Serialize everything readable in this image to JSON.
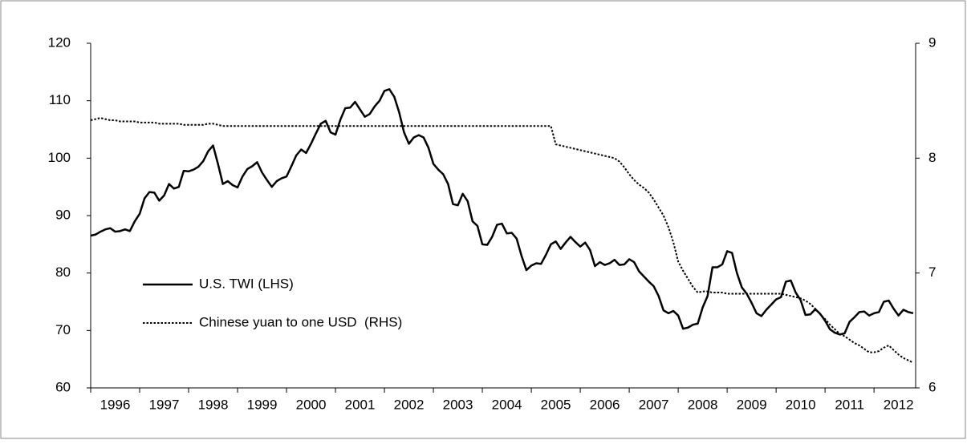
{
  "chart_data": {
    "type": "line",
    "x": [
      1996.0,
      1996.1,
      1996.2,
      1996.3,
      1996.4,
      1996.5,
      1996.6,
      1996.7,
      1996.8,
      1996.9,
      1997.0,
      1997.1,
      1997.2,
      1997.3,
      1997.4,
      1997.5,
      1997.6,
      1997.7,
      1997.8,
      1997.9,
      1998.0,
      1998.1,
      1998.2,
      1998.3,
      1998.4,
      1998.5,
      1998.6,
      1998.7,
      1998.8,
      1998.9,
      1999.0,
      1999.1,
      1999.2,
      1999.3,
      1999.4,
      1999.5,
      1999.6,
      1999.7,
      1999.8,
      1999.9,
      2000.0,
      2000.1,
      2000.2,
      2000.3,
      2000.4,
      2000.5,
      2000.6,
      2000.7,
      2000.8,
      2000.9,
      2001.0,
      2001.1,
      2001.2,
      2001.3,
      2001.4,
      2001.5,
      2001.6,
      2001.7,
      2001.8,
      2001.9,
      2002.0,
      2002.1,
      2002.2,
      2002.3,
      2002.4,
      2002.5,
      2002.6,
      2002.7,
      2002.8,
      2002.9,
      2003.0,
      2003.1,
      2003.2,
      2003.3,
      2003.4,
      2003.5,
      2003.6,
      2003.7,
      2003.8,
      2003.9,
      2004.0,
      2004.1,
      2004.2,
      2004.3,
      2004.4,
      2004.5,
      2004.6,
      2004.7,
      2004.8,
      2004.9,
      2005.0,
      2005.1,
      2005.2,
      2005.3,
      2005.4,
      2005.5,
      2005.6,
      2005.7,
      2005.8,
      2005.9,
      2006.0,
      2006.1,
      2006.2,
      2006.3,
      2006.4,
      2006.5,
      2006.6,
      2006.7,
      2006.8,
      2006.9,
      2007.0,
      2007.1,
      2007.2,
      2007.3,
      2007.4,
      2007.5,
      2007.6,
      2007.7,
      2007.8,
      2007.9,
      2008.0,
      2008.1,
      2008.2,
      2008.3,
      2008.4,
      2008.5,
      2008.6,
      2008.7,
      2008.8,
      2008.9,
      2009.0,
      2009.1,
      2009.2,
      2009.3,
      2009.4,
      2009.5,
      2009.6,
      2009.7,
      2009.8,
      2009.9,
      2010.0,
      2010.1,
      2010.2,
      2010.3,
      2010.4,
      2010.5,
      2010.6,
      2010.7,
      2010.8,
      2010.9,
      2011.0,
      2011.1,
      2011.2,
      2011.3,
      2011.4,
      2011.5,
      2011.6,
      2011.7,
      2011.8,
      2011.9,
      2012.0,
      2012.1,
      2012.2,
      2012.3,
      2012.4,
      2012.5,
      2012.6,
      2012.7,
      2012.8
    ],
    "series": [
      {
        "name": "U.S. TWI (LHS)",
        "color": "#000000",
        "line_style": "solid",
        "axis": "y",
        "values": [
          86.5,
          86.7,
          87.2,
          87.6,
          87.8,
          87.2,
          87.3,
          87.6,
          87.3,
          89,
          90.3,
          93,
          94.1,
          94,
          92.6,
          93.5,
          95.5,
          94.7,
          95,
          97.8,
          97.7,
          98,
          98.5,
          99.5,
          101.2,
          102.2,
          99,
          95.5,
          96,
          95.3,
          94.9,
          96.8,
          98.1,
          98.6,
          99.3,
          97.5,
          96.2,
          95,
          96,
          96.5,
          96.8,
          98.6,
          100.5,
          101.5,
          100.9,
          102.5,
          104.3,
          106,
          106.5,
          104.5,
          104.1,
          106.7,
          108.7,
          108.8,
          109.8,
          108.5,
          107.2,
          107.7,
          109,
          110,
          111.7,
          112,
          110.7,
          108,
          104.5,
          102.5,
          103.6,
          104,
          103.6,
          101.8,
          99,
          98,
          97.2,
          95.5,
          92,
          91.8,
          93.8,
          92.5,
          89,
          88.2,
          85,
          84.9,
          86.3,
          88.4,
          88.6,
          86.9,
          87,
          86,
          83,
          80.5,
          81.3,
          81.7,
          81.6,
          83.2,
          85,
          85.5,
          84.2,
          85.3,
          86.3,
          85.4,
          84.6,
          85.3,
          84,
          81.2,
          81.9,
          81.4,
          81.7,
          82.3,
          81.4,
          81.5,
          82.4,
          81.9,
          80.3,
          79.4,
          78.5,
          77.7,
          76,
          73.5,
          73,
          73.4,
          72.6,
          70.3,
          70.5,
          71,
          71.2,
          74,
          76,
          81,
          81,
          81.5,
          83.8,
          83.5,
          80,
          77.5,
          76.4,
          74.8,
          73,
          72.5,
          73.6,
          74.5,
          75.4,
          75.8,
          78.5,
          78.7,
          76.6,
          75.3,
          72.7,
          72.8,
          73.7,
          72.9,
          71.7,
          70.2,
          69.6,
          69.3,
          69.5,
          71.5,
          72.3,
          73.2,
          73.3,
          72.6,
          73,
          73.2,
          75,
          75.2,
          73.8,
          72.6,
          73.6,
          73.2,
          73
        ]
      },
      {
        "name": "Chinese yuan to one USD  (RHS)",
        "color": "#000000",
        "line_style": "dotted",
        "axis": "y2",
        "values": [
          8.33,
          8.34,
          8.35,
          8.34,
          8.33,
          8.33,
          8.32,
          8.32,
          8.32,
          8.32,
          8.31,
          8.31,
          8.31,
          8.31,
          8.3,
          8.3,
          8.3,
          8.3,
          8.3,
          8.29,
          8.29,
          8.29,
          8.29,
          8.29,
          8.3,
          8.3,
          8.29,
          8.28,
          8.28,
          8.28,
          8.28,
          8.28,
          8.28,
          8.28,
          8.28,
          8.28,
          8.28,
          8.28,
          8.28,
          8.28,
          8.28,
          8.28,
          8.28,
          8.28,
          8.28,
          8.28,
          8.28,
          8.28,
          8.28,
          8.28,
          8.28,
          8.28,
          8.28,
          8.28,
          8.28,
          8.28,
          8.28,
          8.28,
          8.28,
          8.28,
          8.28,
          8.28,
          8.28,
          8.28,
          8.28,
          8.28,
          8.28,
          8.28,
          8.28,
          8.28,
          8.28,
          8.28,
          8.28,
          8.28,
          8.28,
          8.28,
          8.28,
          8.28,
          8.28,
          8.28,
          8.28,
          8.28,
          8.28,
          8.28,
          8.28,
          8.28,
          8.28,
          8.28,
          8.28,
          8.28,
          8.28,
          8.28,
          8.28,
          8.28,
          8.28,
          8.12,
          8.11,
          8.1,
          8.09,
          8.08,
          8.07,
          8.06,
          8.05,
          8.04,
          8.03,
          8.02,
          8.01,
          8.0,
          7.97,
          7.92,
          7.86,
          7.81,
          7.77,
          7.74,
          7.7,
          7.64,
          7.57,
          7.5,
          7.4,
          7.27,
          7.1,
          7.02,
          6.95,
          6.88,
          6.83,
          6.84,
          6.84,
          6.83,
          6.83,
          6.83,
          6.82,
          6.82,
          6.82,
          6.82,
          6.82,
          6.82,
          6.82,
          6.82,
          6.82,
          6.82,
          6.82,
          6.82,
          6.81,
          6.8,
          6.79,
          6.78,
          6.76,
          6.73,
          6.69,
          6.64,
          6.6,
          6.55,
          6.51,
          6.47,
          6.45,
          6.42,
          6.39,
          6.37,
          6.34,
          6.31,
          6.31,
          6.32,
          6.35,
          6.37,
          6.33,
          6.29,
          6.26,
          6.24,
          6.22
        ]
      }
    ],
    "xlim": [
      1996,
      2012.85
    ],
    "xticks": [
      1996,
      1997,
      1998,
      1999,
      2000,
      2001,
      2002,
      2003,
      2004,
      2005,
      2006,
      2007,
      2008,
      2009,
      2010,
      2011,
      2012
    ],
    "ylim": [
      60,
      120
    ],
    "yticks": [
      60,
      70,
      80,
      90,
      100,
      110,
      120
    ],
    "y2lim": [
      6,
      9
    ],
    "y2ticks": [
      6,
      7,
      8,
      9
    ],
    "grid": false,
    "legend": "center left"
  }
}
